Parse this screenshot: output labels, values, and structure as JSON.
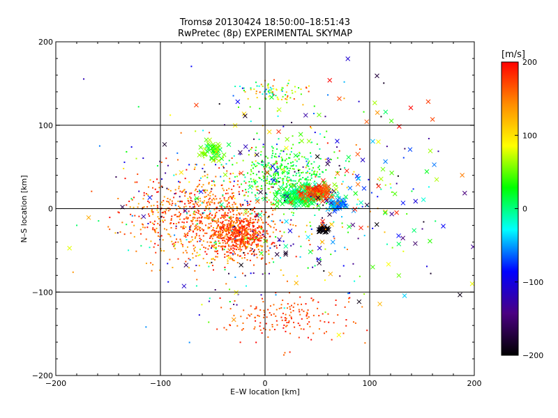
{
  "chart_data": {
    "type": "scatter",
    "title": "Tromsø 20130424 18:50:00–18:51:43",
    "subtitle": "RwPretec (8p) EXPERIMENTAL SKYMAP",
    "xlabel": "E–W location [km]",
    "ylabel": "N–S location [km]",
    "xlim": [
      -200,
      200
    ],
    "ylim": [
      -200,
      200
    ],
    "x_ticks": [
      -200,
      -100,
      0,
      100,
      200
    ],
    "y_ticks": [
      -200,
      -100,
      0,
      100,
      200
    ],
    "grid": true,
    "grid_values": [
      -100,
      0,
      100
    ],
    "marker_types": [
      "dot",
      "cross"
    ],
    "colorbar": {
      "label": "[m/s]",
      "range": [
        -200,
        200
      ],
      "ticks": [
        200,
        100,
        0,
        -100,
        -200
      ],
      "colormap": "rainbow",
      "colors": [
        "#000000",
        "#4b0082",
        "#0000ff",
        "#00ffff",
        "#00ff00",
        "#ffff00",
        "#ff8c00",
        "#ff0000"
      ]
    },
    "clusters": [
      {
        "center": [
          -25,
          -30
        ],
        "spread": [
          22,
          22
        ],
        "count": 600,
        "velocity": [
          150,
          200
        ],
        "marker": "dot"
      },
      {
        "center": [
          -60,
          -10
        ],
        "spread": [
          60,
          45
        ],
        "count": 700,
        "velocity": [
          120,
          200
        ],
        "marker": "dot"
      },
      {
        "center": [
          20,
          40
        ],
        "spread": [
          40,
          30
        ],
        "count": 380,
        "velocity": [
          -10,
          60
        ],
        "marker": "dot"
      },
      {
        "center": [
          35,
          15
        ],
        "spread": [
          18,
          10
        ],
        "count": 200,
        "velocity": [
          -20,
          40
        ],
        "marker": "cross"
      },
      {
        "center": [
          50,
          20
        ],
        "spread": [
          12,
          8
        ],
        "count": 90,
        "velocity": [
          150,
          200
        ],
        "marker": "cross"
      },
      {
        "center": [
          70,
          5
        ],
        "spread": [
          8,
          5
        ],
        "count": 60,
        "velocity": [
          -80,
          -40
        ],
        "marker": "cross"
      },
      {
        "center": [
          55,
          -25
        ],
        "spread": [
          5,
          4
        ],
        "count": 30,
        "velocity": [
          -200,
          -190
        ],
        "marker": "cross"
      },
      {
        "center": [
          10,
          140
        ],
        "spread": [
          30,
          15
        ],
        "count": 90,
        "velocity": [
          -60,
          200
        ],
        "marker": "dot"
      },
      {
        "center": [
          -50,
          70
        ],
        "spread": [
          10,
          10
        ],
        "count": 50,
        "velocity": [
          0,
          80
        ],
        "marker": "cross"
      },
      {
        "center": [
          20,
          -130
        ],
        "spread": [
          50,
          25
        ],
        "count": 160,
        "velocity": [
          150,
          200
        ],
        "marker": "dot"
      },
      {
        "center": [
          0,
          0
        ],
        "spread": [
          120,
          110
        ],
        "count": 450,
        "velocity": [
          -200,
          200
        ],
        "marker": "dot"
      },
      {
        "center": [
          60,
          20
        ],
        "spread": [
          130,
          110
        ],
        "count": 170,
        "velocity": [
          -200,
          200
        ],
        "marker": "cross"
      }
    ]
  }
}
